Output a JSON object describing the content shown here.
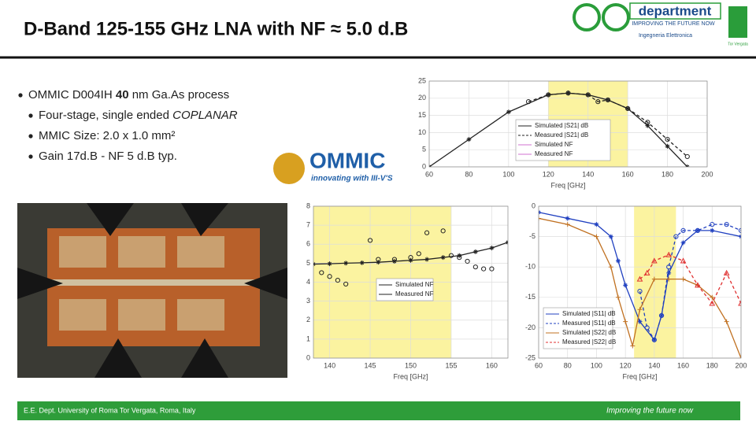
{
  "header": {
    "title": "D-Band 125-155 GHz LNA with NF ≈ 5.0 d.B"
  },
  "logo": {
    "name": "department",
    "tagline": "IMPROVING THE FUTURE NOW",
    "sub": "Ingegneria Elettronica",
    "side": "Tor Vergata"
  },
  "bullets": [
    [
      {
        "t": "OMMIC D004IH "
      },
      {
        "t": "40",
        "style": "bold"
      },
      {
        "t": " nm Ga.As process"
      }
    ],
    [
      {
        "t": "Four-stage, single ended "
      },
      {
        "t": "COPLANAR",
        "style": "italic"
      }
    ],
    [
      {
        "t": "MMIC Size: 2.0 x 1.0 mm²"
      }
    ],
    [
      {
        "t": "Gain 17d.B - NF 5 d.B typ."
      }
    ]
  ],
  "ommic": {
    "name": "OMMIC",
    "tagline": "innovating with III-V'S"
  },
  "figures": [
    {
      "type": "line",
      "xlabel": "Freq [GHz]",
      "xlim": [
        60,
        200
      ],
      "ylim": [
        0,
        25
      ],
      "xticks": [
        60,
        80,
        100,
        120,
        140,
        160,
        180,
        200
      ],
      "yticks": [
        0,
        5,
        10,
        15,
        20,
        25
      ],
      "highlight": [
        120,
        160
      ],
      "grid": true,
      "series": [
        {
          "name": "Simulated |S21| dB",
          "color": "#222222",
          "marker": "star",
          "x": [
            60,
            80,
            100,
            120,
            130,
            140,
            150,
            160,
            170,
            180,
            190
          ],
          "values": [
            0,
            8,
            16,
            21,
            21.5,
            21,
            19.5,
            17,
            12,
            6,
            0
          ]
        },
        {
          "name": "Measured |S21| dB",
          "color": "#222222",
          "marker": "circle",
          "dash": true,
          "x": [
            110,
            120,
            130,
            140,
            145,
            150,
            160,
            170,
            180,
            190
          ],
          "values": [
            19,
            21,
            21.5,
            21,
            19,
            19.5,
            17,
            13,
            8,
            3
          ]
        },
        {
          "name": "Simulated NF",
          "color": "#d070d0",
          "marker": "plus"
        },
        {
          "name": "Measured NF",
          "color": "#d070d0",
          "marker": "triangle"
        }
      ]
    },
    {
      "type": "line",
      "xlabel": "Freq [GHz]",
      "xlim": [
        138,
        162
      ],
      "ylim": [
        0,
        8
      ],
      "xticks": [
        140,
        145,
        150,
        155,
        160
      ],
      "yticks": [
        0,
        1,
        2,
        3,
        4,
        5,
        6,
        7,
        8
      ],
      "highlight": [
        138,
        155
      ],
      "grid": true,
      "series": [
        {
          "name": "Simulated NF",
          "color": "#222222",
          "marker": "star",
          "x": [
            138,
            140,
            142,
            144,
            146,
            148,
            150,
            152,
            154,
            156,
            158,
            160,
            162
          ],
          "values": [
            4.95,
            4.97,
            5.0,
            5.02,
            5.05,
            5.1,
            5.15,
            5.2,
            5.3,
            5.4,
            5.6,
            5.8,
            6.1
          ]
        },
        {
          "name": "Measured NF",
          "color": "#222222",
          "marker": "circle",
          "nolines": true,
          "x": [
            139,
            140,
            141,
            142,
            145,
            146,
            148,
            150,
            151,
            152,
            154,
            155,
            156,
            157,
            158,
            159,
            160
          ],
          "values": [
            4.5,
            4.3,
            4.1,
            3.9,
            6.2,
            5.2,
            5.2,
            5.3,
            5.5,
            6.6,
            6.7,
            5.4,
            5.3,
            5.1,
            4.8,
            4.7,
            4.7
          ]
        }
      ]
    },
    {
      "type": "line",
      "xlabel": "Freq [GHz]",
      "xlim": [
        60,
        200
      ],
      "ylim": [
        -25,
        0
      ],
      "xticks": [
        60,
        80,
        100,
        120,
        140,
        160,
        180,
        200
      ],
      "yticks": [
        -25,
        -20,
        -15,
        -10,
        -5,
        0
      ],
      "highlight": [
        126,
        155
      ],
      "grid": true,
      "series": [
        {
          "name": "Simulated |S11| dB",
          "color": "#2040c0",
          "marker": "star",
          "x": [
            60,
            80,
            100,
            110,
            115,
            120,
            130,
            140,
            145,
            150,
            160,
            170,
            180,
            200
          ],
          "values": [
            -1,
            -2,
            -3,
            -5,
            -9,
            -13,
            -19,
            -22,
            -18,
            -11,
            -6,
            -4,
            -4,
            -5
          ]
        },
        {
          "name": "Measured |S11| dB",
          "color": "#2040c0",
          "marker": "circle",
          "dash": true,
          "x": [
            130,
            135,
            140,
            145,
            150,
            155,
            160,
            170,
            180,
            190,
            200
          ],
          "values": [
            -14,
            -20,
            -22,
            -18,
            -10,
            -5,
            -4,
            -4,
            -3,
            -3,
            -4
          ]
        },
        {
          "name": "Simulated |S22| dB",
          "color": "#c07020",
          "marker": "plus",
          "x": [
            60,
            80,
            100,
            110,
            115,
            120,
            125,
            130,
            140,
            150,
            160,
            170,
            180,
            190,
            200
          ],
          "values": [
            -2,
            -3,
            -5,
            -10,
            -15,
            -19,
            -23,
            -17,
            -12,
            -12,
            -12,
            -13,
            -15,
            -19,
            -25
          ]
        },
        {
          "name": "Measured |S22| dB",
          "color": "#e03030",
          "marker": "triangle",
          "dash": true,
          "x": [
            130,
            135,
            140,
            150,
            160,
            170,
            180,
            190,
            200
          ],
          "values": [
            -12,
            -11,
            -9,
            -8,
            -9,
            -13,
            -16,
            -11,
            -16
          ]
        }
      ]
    }
  ],
  "footer": {
    "left": "E.E. Dept. University of Roma Tor Vergata, Roma, Italy",
    "right": "Improving the future now"
  }
}
